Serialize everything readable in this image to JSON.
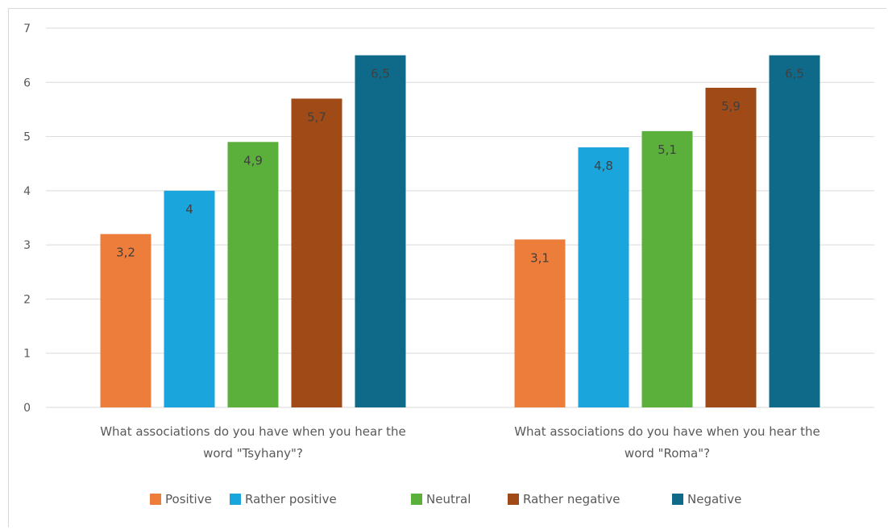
{
  "chart_data": {
    "type": "bar",
    "categories": [
      [
        "What associations do you have when you hear the",
        "word \"Tsyhany\"?"
      ],
      [
        "What associations do you have when you hear the",
        "word \"Roma\"?"
      ]
    ],
    "series": [
      {
        "name": "Positive",
        "color": "#ed7d3b",
        "values": [
          3.2,
          3.1
        ],
        "labels": [
          "3,2",
          "3,1"
        ]
      },
      {
        "name": "Rather positive",
        "color": "#1aa6dc",
        "values": [
          4.0,
          4.8
        ],
        "labels": [
          "4",
          "4,8"
        ]
      },
      {
        "name": "Neutral",
        "color": "#5bb03c",
        "values": [
          4.9,
          5.1
        ],
        "labels": [
          "4,9",
          "5,1"
        ]
      },
      {
        "name": "Rather negative",
        "color": "#9f4a17",
        "values": [
          5.7,
          5.9
        ],
        "labels": [
          "5,7",
          "5,9"
        ]
      },
      {
        "name": "Negative",
        "color": "#0f6a8a",
        "values": [
          6.5,
          6.5
        ],
        "labels": [
          "6,5",
          "6,5"
        ]
      }
    ],
    "ylim": [
      0,
      7
    ],
    "yticks": [
      "0",
      "1",
      "2",
      "3",
      "4",
      "5",
      "6",
      "7"
    ],
    "grid": true,
    "legend_position": "bottom"
  }
}
